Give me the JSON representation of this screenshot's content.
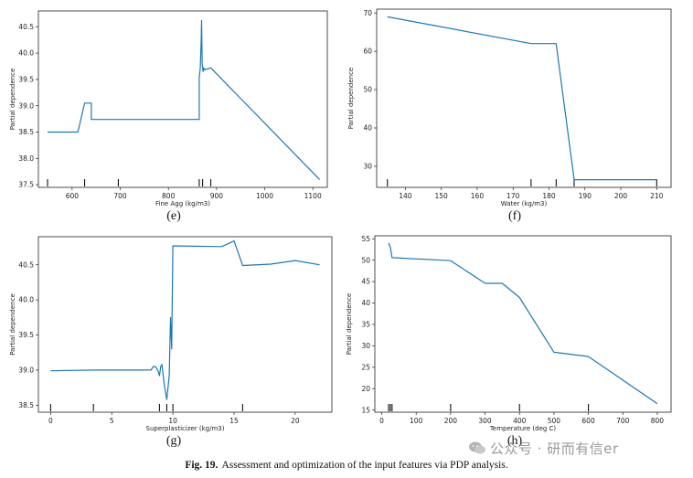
{
  "figure": {
    "caption_label": "Fig. 19.",
    "caption_text": "Assessment and optimization of the input features via PDP analysis.",
    "watermark": "公众号 · 研而有信er"
  },
  "chart_data": [
    {
      "type": "line",
      "panel_label": "(e)",
      "xlabel": "Fine Agg (kg/m3)",
      "ylabel": "Partial dependence",
      "xlim": [
        530,
        1130
      ],
      "ylim": [
        37.45,
        40.8
      ],
      "xticks": [
        600,
        700,
        800,
        900,
        1000,
        1100
      ],
      "yticks": [
        37.5,
        38.0,
        38.5,
        39.0,
        39.5,
        40.0,
        40.5
      ],
      "ytick_labels": [
        "37.5",
        "38.0",
        "38.5",
        "39.0",
        "39.5",
        "40.0",
        "40.5"
      ],
      "x": [
        549,
        612,
        626,
        640,
        640,
        864,
        864,
        866,
        868,
        869,
        870,
        872,
        873,
        875,
        888,
        1114
      ],
      "y": [
        38.5,
        38.5,
        39.05,
        39.05,
        38.74,
        38.74,
        39.55,
        39.7,
        40.2,
        40.62,
        39.8,
        39.65,
        39.72,
        39.68,
        39.72,
        37.6
      ],
      "rug": [
        549,
        626,
        696,
        864,
        871,
        888
      ]
    },
    {
      "type": "line",
      "panel_label": "(f)",
      "xlabel": "Water (kg/m3)",
      "ylabel": "Partial dependence",
      "xlim": [
        132,
        214
      ],
      "ylim": [
        24.5,
        71
      ],
      "xticks": [
        140,
        150,
        160,
        170,
        180,
        190,
        200,
        210
      ],
      "yticks": [
        30,
        40,
        50,
        60,
        70
      ],
      "ytick_labels": [
        "30",
        "40",
        "50",
        "60",
        "70"
      ],
      "x": [
        135,
        175,
        182,
        187,
        187.5,
        210
      ],
      "y": [
        69,
        62,
        62,
        26.5,
        26.5,
        26.5
      ],
      "rug": [
        135,
        175,
        182,
        187,
        210
      ]
    },
    {
      "type": "line",
      "panel_label": "(g)",
      "xlabel": "Superplasticizer (kg/m3)",
      "ylabel": "Partial dependence",
      "xlim": [
        -1,
        23
      ],
      "ylim": [
        38.4,
        40.9
      ],
      "xticks": [
        0,
        5,
        10,
        15,
        20
      ],
      "yticks": [
        38.5,
        39.0,
        39.5,
        40.0,
        40.5
      ],
      "ytick_labels": [
        "38.5",
        "39.0",
        "39.5",
        "40.0",
        "40.5"
      ],
      "x": [
        0,
        3.5,
        8.2,
        8.4,
        8.6,
        8.8,
        8.9,
        9.0,
        9.1,
        9.3,
        9.5,
        9.7,
        9.8,
        9.9,
        10.0,
        14,
        15,
        15.7,
        18,
        20,
        22
      ],
      "y": [
        38.99,
        39.0,
        39.0,
        39.05,
        39.05,
        38.98,
        38.92,
        39.05,
        39.08,
        38.78,
        38.58,
        38.92,
        39.75,
        39.3,
        40.77,
        40.76,
        40.84,
        40.49,
        40.51,
        40.56,
        40.5
      ],
      "rug": [
        0,
        3.5,
        8.9,
        9.5,
        10.0,
        15.7
      ]
    },
    {
      "type": "line",
      "panel_label": "(h)",
      "xlabel": "Temperature (deg C)",
      "ylabel": "Partial dependence",
      "xlim": [
        -20,
        840
      ],
      "ylim": [
        14.5,
        55.7
      ],
      "xticks": [
        0,
        100,
        200,
        300,
        400,
        500,
        600,
        700,
        800
      ],
      "yticks": [
        15,
        20,
        25,
        30,
        35,
        40,
        45,
        50,
        55
      ],
      "ytick_labels": [
        "15",
        "20",
        "25",
        "30",
        "35",
        "40",
        "45",
        "50",
        "55"
      ],
      "x": [
        20,
        25,
        30,
        200,
        300,
        350,
        400,
        500,
        600,
        800
      ],
      "y": [
        54,
        53,
        50.6,
        49.9,
        44.6,
        44.6,
        41.3,
        28.5,
        27.5,
        16.5
      ],
      "rug": [
        20,
        25,
        30,
        200,
        400,
        600
      ]
    }
  ]
}
